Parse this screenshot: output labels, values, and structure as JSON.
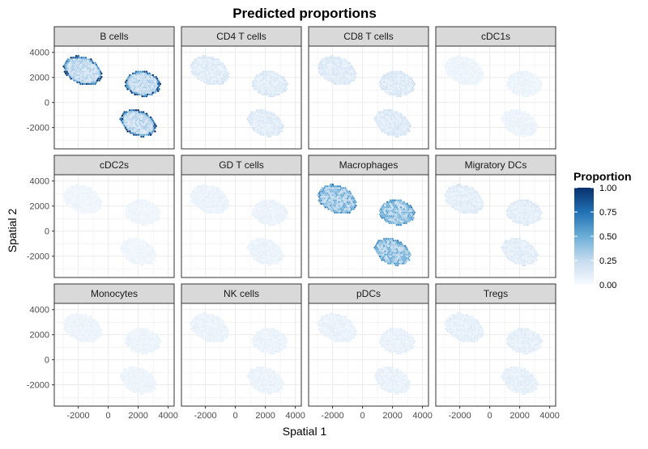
{
  "chart_data": {
    "type": "heatmap",
    "title": "Predicted proportions",
    "xlabel": "Spatial 1",
    "ylabel": "Spatial 2",
    "xlim": [
      -3600,
      4400
    ],
    "ylim": [
      -3700,
      4500
    ],
    "x_ticks": [
      -2000,
      0,
      2000,
      4000
    ],
    "y_ticks": [
      -2000,
      0,
      2000,
      4000
    ],
    "grid": true,
    "legend": {
      "title": "Proportion",
      "position": "right",
      "ticks": [
        "1.00",
        "0.75",
        "0.50",
        "0.25",
        "0.00"
      ],
      "range": [
        0,
        1
      ],
      "colors": [
        "#f7fbff",
        "#c6dbef",
        "#6baed6",
        "#2171b5",
        "#08306b"
      ]
    },
    "facets": [
      {
        "name": "B cells",
        "mean": 0.25,
        "edge": 0.95
      },
      {
        "name": "CD4 T cells",
        "mean": 0.12,
        "edge": 0.18
      },
      {
        "name": "CD8 T cells",
        "mean": 0.13,
        "edge": 0.18
      },
      {
        "name": "cDC1s",
        "mean": 0.06,
        "edge": 0.06
      },
      {
        "name": "cDC2s",
        "mean": 0.05,
        "edge": 0.05
      },
      {
        "name": "GD T cells",
        "mean": 0.07,
        "edge": 0.07
      },
      {
        "name": "Macrophages",
        "mean": 0.38,
        "edge": 0.6
      },
      {
        "name": "Migratory DCs",
        "mean": 0.11,
        "edge": 0.15
      },
      {
        "name": "Monocytes",
        "mean": 0.06,
        "edge": 0.06
      },
      {
        "name": "NK cells",
        "mean": 0.07,
        "edge": 0.07
      },
      {
        "name": "pDCs",
        "mean": 0.08,
        "edge": 0.08
      },
      {
        "name": "Tregs",
        "mean": 0.1,
        "edge": 0.1
      }
    ],
    "tissue_sections": [
      {
        "label": "top-left",
        "center": [
          -1700,
          2550
        ],
        "radius_x": 1400,
        "radius_y": 1050,
        "rotation_deg": -35
      },
      {
        "label": "right",
        "center": [
          2300,
          1500
        ],
        "radius_x": 1200,
        "radius_y": 1000,
        "rotation_deg": -15
      },
      {
        "label": "bottom",
        "center": [
          2000,
          -1650
        ],
        "radius_x": 1300,
        "radius_y": 950,
        "rotation_deg": -35
      }
    ]
  }
}
